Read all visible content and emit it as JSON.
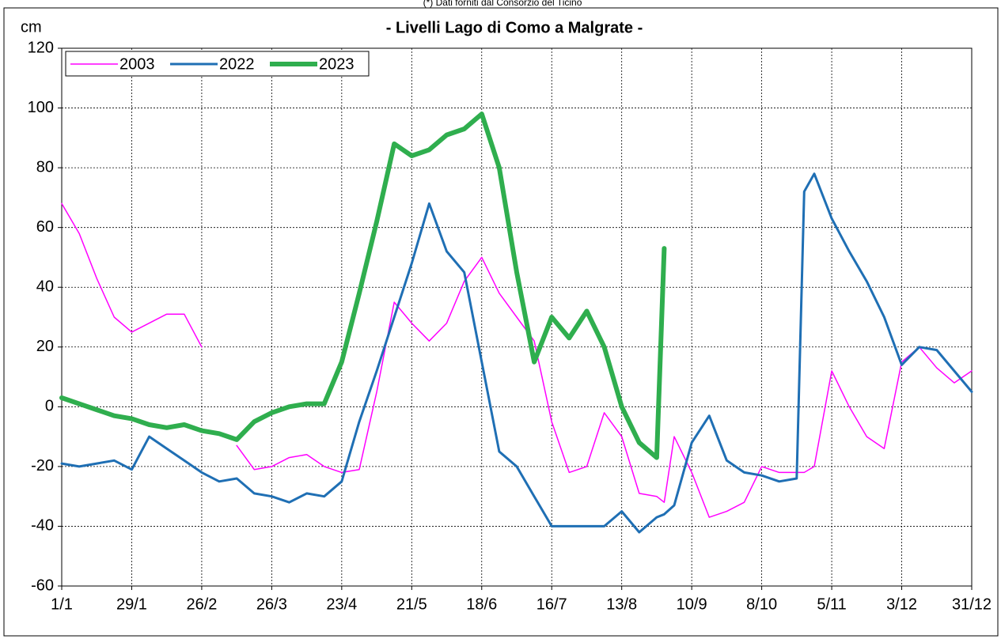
{
  "chart_data": {
    "type": "line",
    "subtitle": "(*) Dati forniti dal Consorzio del Ticino",
    "title": "- Livelli Lago di Como a Malgrate -",
    "y_label": "cm",
    "x": [
      0,
      7,
      14,
      21,
      28,
      35,
      42,
      49,
      56,
      63,
      70,
      77,
      84,
      91,
      98,
      105,
      112,
      119,
      126,
      133,
      140,
      147,
      154,
      161,
      168,
      175,
      182,
      189,
      196,
      203,
      210,
      217,
      224,
      231,
      238,
      241,
      245,
      252,
      259,
      266,
      273,
      280,
      287,
      294,
      297,
      301,
      308,
      315,
      322,
      329,
      336,
      343,
      350,
      357,
      364
    ],
    "xlim": [
      0,
      364
    ],
    "xticks": [
      {
        "value": 0,
        "label": "1/1"
      },
      {
        "value": 28,
        "label": "29/1"
      },
      {
        "value": 56,
        "label": "26/2"
      },
      {
        "value": 84,
        "label": "26/3"
      },
      {
        "value": 112,
        "label": "23/4"
      },
      {
        "value": 140,
        "label": "21/5"
      },
      {
        "value": 168,
        "label": "18/6"
      },
      {
        "value": 196,
        "label": "16/7"
      },
      {
        "value": 224,
        "label": "13/8"
      },
      {
        "value": 252,
        "label": "10/9"
      },
      {
        "value": 280,
        "label": "8/10"
      },
      {
        "value": 308,
        "label": "5/11"
      },
      {
        "value": 336,
        "label": "3/12"
      },
      {
        "value": 364,
        "label": "31/12"
      }
    ],
    "ylim": [
      -60,
      120
    ],
    "yticks": [
      -60,
      -40,
      -20,
      0,
      20,
      40,
      60,
      80,
      100,
      120
    ],
    "grid": true,
    "legend": "top-left",
    "series": [
      {
        "name": "2003",
        "color": "#ff00ff",
        "width": 1.5,
        "values": [
          68,
          58,
          43,
          30,
          25,
          28,
          31,
          31,
          20,
          null,
          -13,
          -21,
          -20,
          -17,
          -16,
          -20,
          -22,
          -21,
          5,
          35,
          28,
          22,
          28,
          42,
          50,
          38,
          30,
          22,
          -5,
          -22,
          -20,
          -2,
          -10,
          -29,
          -30,
          -32,
          -10,
          -22,
          -37,
          -35,
          -32,
          -20,
          -22,
          -22,
          -22,
          -20,
          12,
          0,
          -10,
          -14,
          15,
          20,
          13,
          8,
          12
        ]
      },
      {
        "name": "2022",
        "color": "#1f6fb4",
        "width": 3,
        "values": [
          -19,
          -20,
          -19,
          -18,
          -21,
          -10,
          -14,
          -18,
          -22,
          -25,
          -24,
          -29,
          -30,
          -32,
          -29,
          -30,
          -25,
          -5,
          12,
          30,
          48,
          68,
          52,
          45,
          15,
          -15,
          -20,
          -30,
          -40,
          -40,
          -40,
          -40,
          -35,
          -42,
          -37,
          -36,
          -33,
          -12,
          -3,
          -18,
          -22,
          -23,
          -25,
          -24,
          72,
          78,
          63,
          52,
          42,
          30,
          14,
          20,
          19,
          12,
          5
        ]
      },
      {
        "name": "2023",
        "color": "#2fae4e",
        "width": 6,
        "values": [
          3,
          1,
          -1,
          -3,
          -4,
          -6,
          -7,
          -6,
          -8,
          -9,
          -11,
          -5,
          -2,
          0,
          1,
          1,
          15,
          38,
          62,
          88,
          84,
          86,
          91,
          93,
          98,
          80,
          45,
          15,
          30,
          23,
          32,
          20,
          0,
          -12,
          -17,
          53,
          null,
          null,
          null,
          null,
          null,
          null,
          null,
          null,
          null,
          null,
          null,
          null,
          null,
          null,
          null,
          null,
          null,
          null,
          null
        ]
      }
    ]
  }
}
